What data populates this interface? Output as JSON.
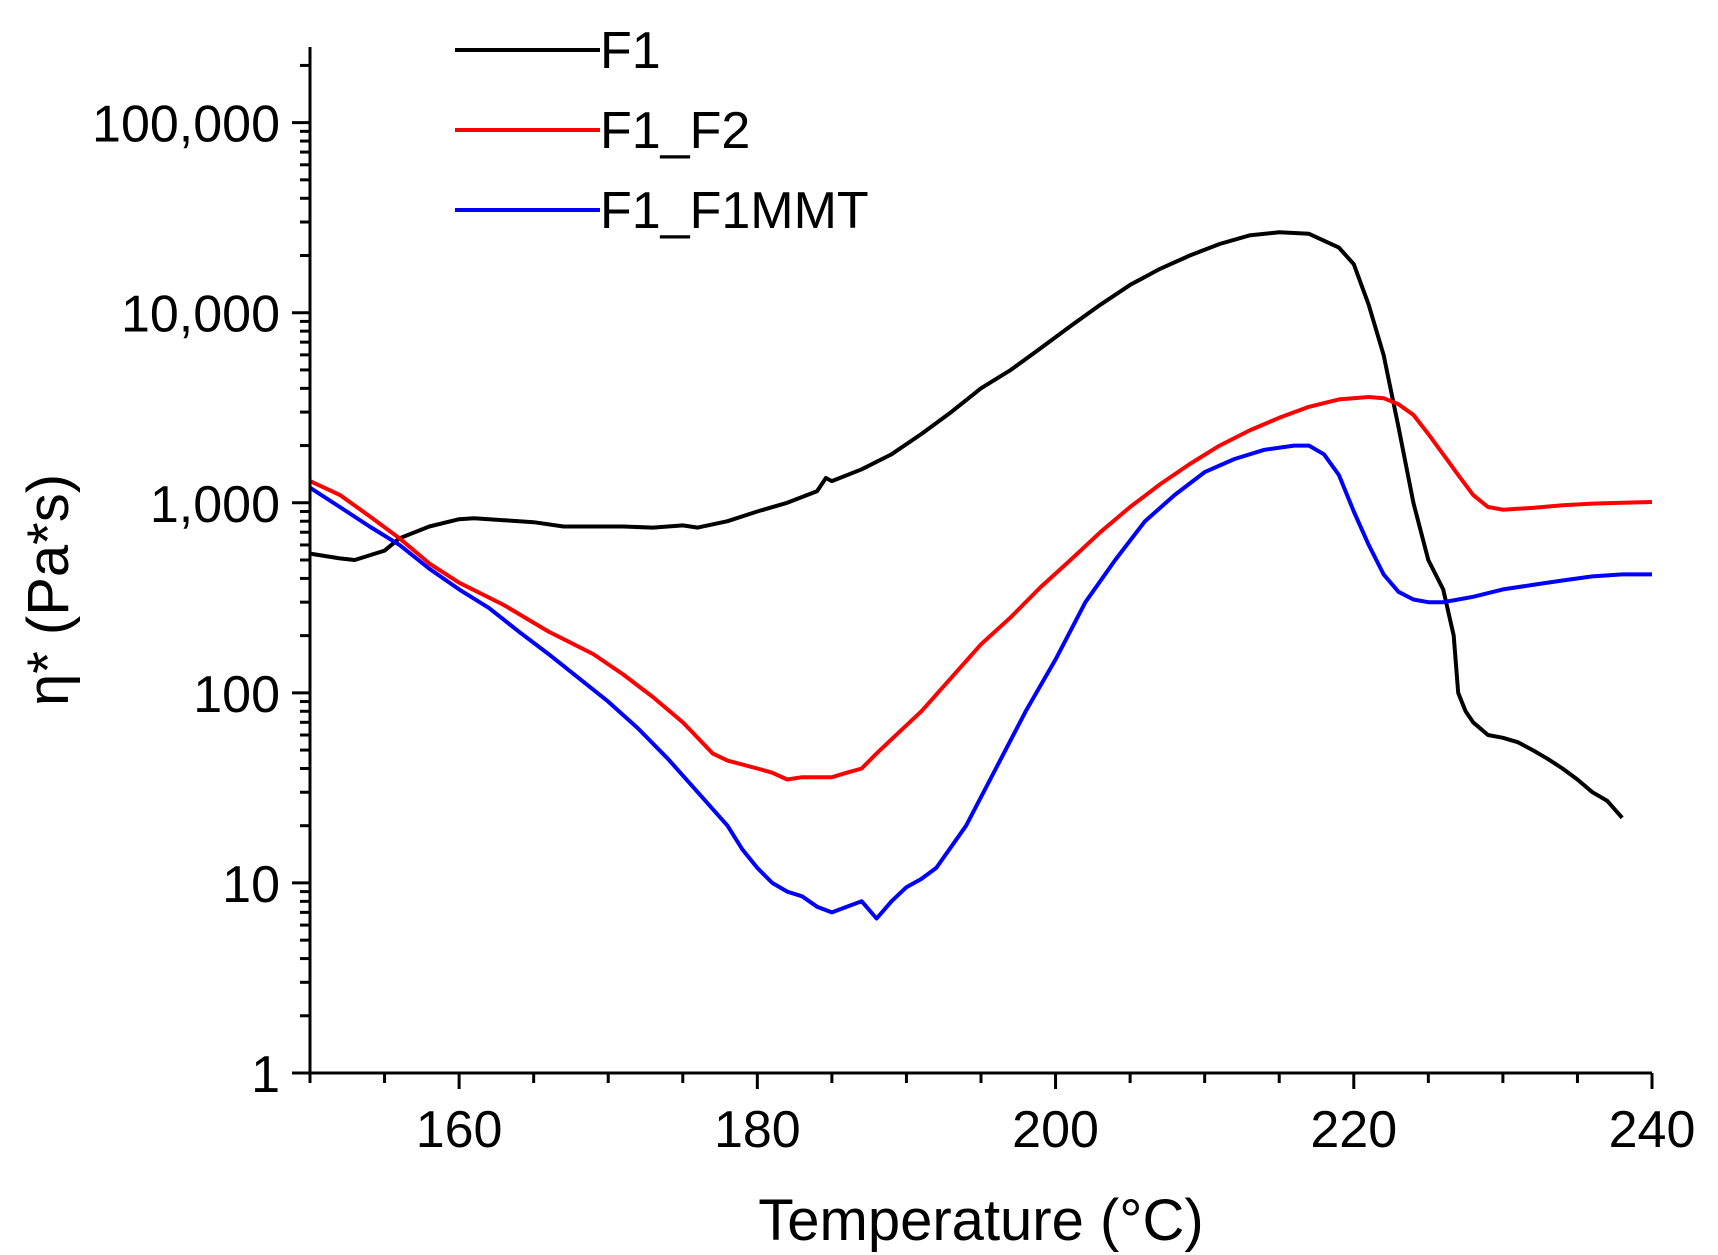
{
  "chart_data": {
    "type": "line",
    "title": "",
    "xlabel": "Temperature (°C)",
    "ylabel": "η* (Pa*s)",
    "yscale": "log",
    "xlim": [
      150,
      240
    ],
    "ylim": [
      1,
      250000
    ],
    "x_ticks": [
      {
        "value": 160,
        "label": "160"
      },
      {
        "value": 180,
        "label": "180"
      },
      {
        "value": 200,
        "label": "200"
      },
      {
        "value": 220,
        "label": "220"
      },
      {
        "value": 240,
        "label": "240"
      }
    ],
    "y_ticks": [
      {
        "value": 1,
        "label": "1"
      },
      {
        "value": 10,
        "label": "10"
      },
      {
        "value": 100,
        "label": "100"
      },
      {
        "value": 1000,
        "label": "1,000"
      },
      {
        "value": 10000,
        "label": "10,000"
      },
      {
        "value": 100000,
        "label": "100,000"
      }
    ],
    "legend_position": "top-left",
    "grid": false,
    "series": [
      {
        "name": "F1",
        "color": "#000000",
        "x": [
          150,
          152,
          153,
          155,
          156,
          158,
          160,
          161,
          163,
          165,
          167,
          169,
          171,
          173,
          175,
          176,
          178,
          180,
          182,
          184,
          184.6,
          185,
          187,
          189,
          191,
          193,
          195,
          197,
          199,
          201,
          203,
          205,
          207,
          209,
          211,
          213,
          215,
          217,
          219,
          220,
          221,
          222,
          223,
          224,
          225,
          226,
          226.7,
          227,
          227.5,
          228,
          229,
          230,
          231,
          232,
          233,
          234,
          235,
          236,
          237,
          238
        ],
        "y": [
          540,
          510,
          500,
          560,
          650,
          750,
          820,
          830,
          810,
          790,
          750,
          750,
          750,
          740,
          760,
          740,
          800,
          900,
          1000,
          1150,
          1350,
          1300,
          1500,
          1800,
          2300,
          3000,
          4000,
          5000,
          6500,
          8500,
          11000,
          14000,
          17000,
          20000,
          23000,
          25500,
          26500,
          26000,
          22000,
          18000,
          11000,
          6000,
          2500,
          1000,
          500,
          350,
          200,
          100,
          80,
          70,
          60,
          58,
          55,
          50,
          45,
          40,
          35,
          30,
          27,
          22
        ]
      },
      {
        "name": "F1_F2",
        "color": "#ff0000",
        "x": [
          150,
          152,
          154,
          156,
          158,
          160,
          163,
          166,
          169,
          171,
          173,
          175,
          177,
          178,
          180,
          181,
          182,
          183,
          184,
          185,
          186,
          187,
          188,
          189,
          191,
          193,
          195,
          197,
          199,
          201,
          203,
          205,
          207,
          209,
          211,
          213,
          215,
          217,
          219,
          221,
          222,
          223,
          224,
          225,
          226,
          227,
          228,
          229,
          230,
          231,
          232,
          234,
          236,
          238,
          240
        ],
        "y": [
          1300,
          1100,
          850,
          650,
          480,
          380,
          290,
          210,
          160,
          125,
          95,
          70,
          48,
          44,
          40,
          38,
          35,
          36,
          36,
          36,
          38,
          40,
          48,
          57,
          80,
          120,
          180,
          250,
          360,
          500,
          700,
          950,
          1250,
          1600,
          2000,
          2400,
          2800,
          3200,
          3500,
          3600,
          3550,
          3300,
          2900,
          2300,
          1800,
          1400,
          1100,
          950,
          920,
          930,
          940,
          970,
          990,
          1000,
          1010
        ]
      },
      {
        "name": "F1_F1MMT",
        "color": "#0000ff",
        "x": [
          150,
          152,
          154,
          156,
          158,
          160,
          162,
          164,
          166,
          168,
          170,
          172,
          174,
          176,
          178,
          179,
          180,
          181,
          182,
          183,
          184,
          185,
          186,
          187,
          188,
          189,
          190,
          191,
          192,
          194,
          196,
          198,
          200,
          202,
          204,
          206,
          208,
          210,
          212,
          214,
          216,
          217,
          218,
          219,
          220,
          221,
          222,
          223,
          224,
          225,
          226,
          227,
          228,
          230,
          232,
          234,
          236,
          238,
          240
        ],
        "y": [
          1200,
          950,
          750,
          600,
          450,
          350,
          280,
          210,
          160,
          120,
          90,
          65,
          45,
          30,
          20,
          15,
          12,
          10,
          9,
          8.5,
          7.5,
          7,
          7.5,
          8,
          6.5,
          8,
          9.5,
          10.5,
          12,
          20,
          40,
          80,
          150,
          300,
          500,
          800,
          1100,
          1450,
          1700,
          1900,
          2000,
          2000,
          1800,
          1400,
          900,
          600,
          420,
          340,
          310,
          300,
          300,
          310,
          320,
          350,
          370,
          390,
          410,
          420,
          420
        ]
      }
    ]
  }
}
